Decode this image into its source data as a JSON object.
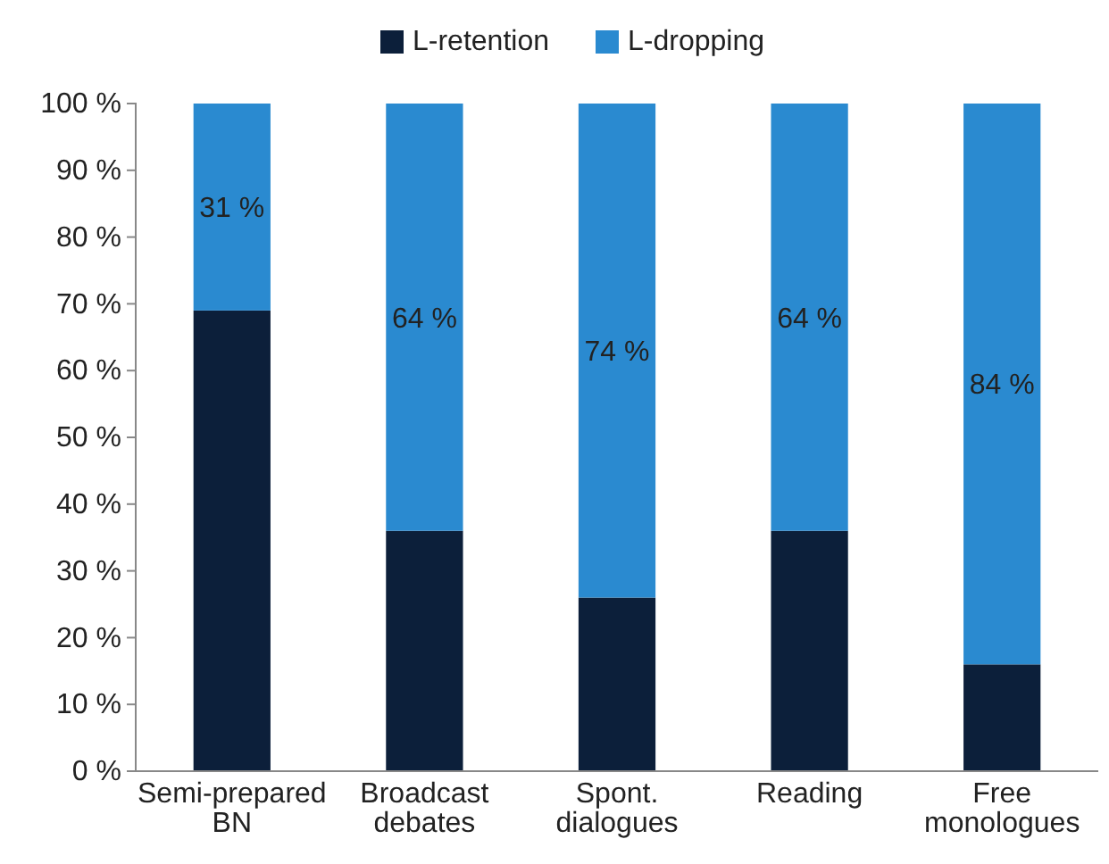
{
  "chart_data": {
    "type": "bar",
    "stacked": true,
    "categories": [
      "Semi-prepared BN",
      "Broadcast debates",
      "Spont. dialogues",
      "Reading",
      "Free monologues"
    ],
    "series": [
      {
        "name": "L-retention",
        "color": "#0c1f3a",
        "values": [
          69,
          36,
          26,
          36,
          16
        ]
      },
      {
        "name": "L-dropping",
        "color": "#2a8ad0",
        "values": [
          31,
          64,
          74,
          64,
          84
        ],
        "value_labels": [
          "31 %",
          "64 %",
          "74 %",
          "64 %",
          "84 %"
        ]
      }
    ],
    "ylim": [
      0,
      100
    ],
    "yticks": [
      {
        "value": 0,
        "label": "0 %"
      },
      {
        "value": 10,
        "label": "10 %"
      },
      {
        "value": 20,
        "label": "20 %"
      },
      {
        "value": 30,
        "label": "30 %"
      },
      {
        "value": 40,
        "label": "40 %"
      },
      {
        "value": 50,
        "label": "50 %"
      },
      {
        "value": 60,
        "label": "60 %"
      },
      {
        "value": 70,
        "label": "70 %"
      },
      {
        "value": 80,
        "label": "80 %"
      },
      {
        "value": 90,
        "label": "90 %"
      },
      {
        "value": 100,
        "label": "100 %"
      }
    ],
    "grid": false,
    "legend": "top"
  }
}
